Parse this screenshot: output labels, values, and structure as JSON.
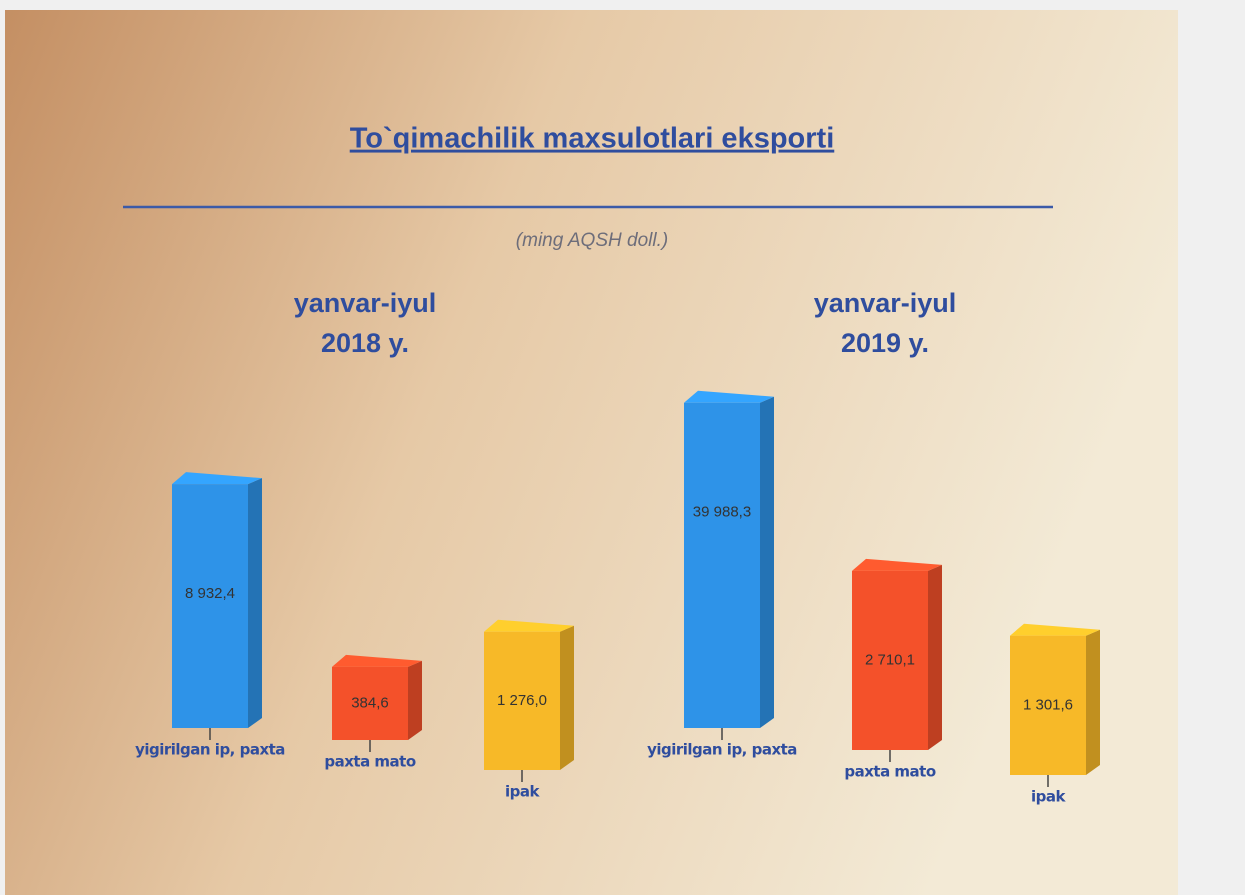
{
  "header": {
    "title": "To`qimachilik maxsulotlari eksporti",
    "subtitle": "(ming AQSH doll.)"
  },
  "chart_data": [
    {
      "type": "bar",
      "title": "yanvar-iyul",
      "subtitle": "2018 y.",
      "categories": [
        "yigirilgan ip, paxta",
        "paxta mato",
        "ipak"
      ],
      "values": [
        8932.4,
        384.6,
        1276.0
      ],
      "value_labels": [
        "8 932,4",
        "384,6",
        "1 276,0"
      ],
      "colors": [
        "#2e93e8",
        "#f4512a",
        "#f7b928"
      ]
    },
    {
      "type": "bar",
      "title": "yanvar-iyul",
      "subtitle": "2019 y.",
      "categories": [
        "yigirilgan ip, paxta",
        "paxta mato",
        "ipak"
      ],
      "values": [
        39988.3,
        2710.1,
        1301.6
      ],
      "value_labels": [
        "39 988,3",
        "2 710,1",
        "1 301,6"
      ],
      "colors": [
        "#2e93e8",
        "#f4512a",
        "#f7b928"
      ]
    }
  ]
}
